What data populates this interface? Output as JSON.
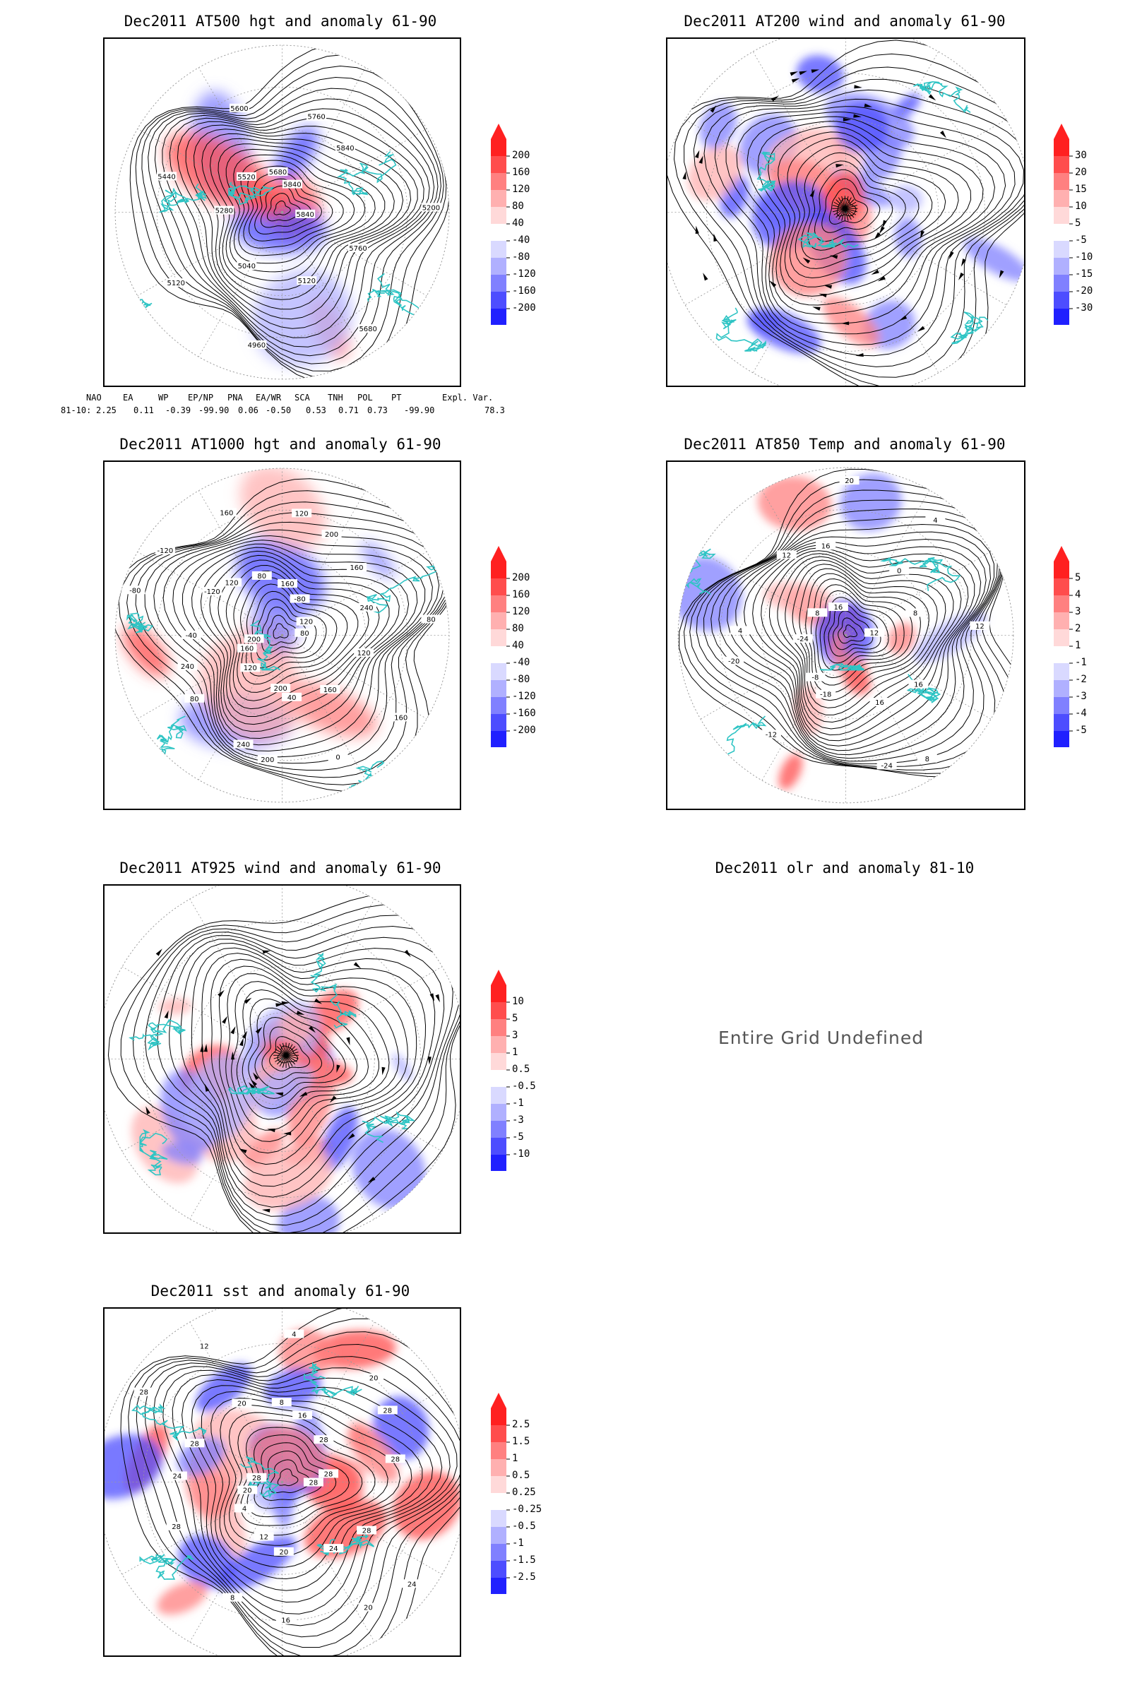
{
  "panels": [
    {
      "id": "p1",
      "title": "Dec2011 AT500 hgt and anomaly 61-90",
      "type": "contour-anomaly",
      "contour_labels": [
        "5840",
        "5760",
        "5680",
        "5120",
        "4960",
        "5040",
        "5120",
        "5280",
        "5440",
        "5520",
        "5600",
        "5680",
        "5760",
        "5840",
        "5840",
        "5200"
      ],
      "colorbar": [
        "200",
        "160",
        "120",
        "80",
        "40",
        "-40",
        "-80",
        "-120",
        "-160",
        "-200"
      ]
    },
    {
      "id": "p2",
      "title": "Dec2011 AT200 wind and anomaly 61-90",
      "type": "streamline-anomaly",
      "contour_labels": [],
      "colorbar": [
        "30",
        "20",
        "15",
        "10",
        "5",
        "-5",
        "-10",
        "-15",
        "-20",
        "-30"
      ]
    },
    {
      "id": "p3",
      "title": "Dec2011 AT1000 hgt and anomaly 61-90",
      "type": "contour-anomaly",
      "contour_labels": [
        "80",
        "120",
        "160",
        "160",
        "0",
        "40",
        "200",
        "200",
        "240",
        "120",
        "80",
        "160",
        "240",
        "200",
        "-40",
        "-80",
        "-120",
        "-120",
        "120",
        "160",
        "80",
        "120",
        "160",
        "200",
        "-80",
        "160",
        "120",
        "240",
        "80"
      ],
      "colorbar": [
        "200",
        "160",
        "120",
        "80",
        "40",
        "-40",
        "-80",
        "-120",
        "-160",
        "-200"
      ]
    },
    {
      "id": "p4",
      "title": "Dec2011 AT850 Temp and anomaly 61-90",
      "type": "contour-anomaly",
      "contour_labels": [
        "12",
        "16",
        "8",
        "16",
        "-24",
        "-18",
        "-12",
        "-8",
        "-20",
        "-24",
        "4",
        "8",
        "12",
        "16",
        "16",
        "20",
        "0",
        "4",
        "8",
        "12"
      ],
      "colorbar": [
        "5",
        "4",
        "3",
        "2",
        "1",
        "-1",
        "-2",
        "-3",
        "-4",
        "-5"
      ]
    },
    {
      "id": "p5",
      "title": "Dec2011 AT925 wind and anomaly 61-90",
      "type": "streamline-anomaly",
      "contour_labels": [],
      "colorbar": [
        "10",
        "5",
        "3",
        "1",
        "0.5",
        "-0.5",
        "-1",
        "-3",
        "-5",
        "-10"
      ]
    },
    {
      "id": "p6",
      "title": "Dec2011 olr and anomaly 81-10",
      "type": "undefined",
      "message": "Entire Grid Undefined"
    },
    {
      "id": "p7",
      "title": "Dec2011 sst and anomaly 61-90",
      "type": "contour-anomaly",
      "contour_labels": [
        "28",
        "28",
        "24",
        "24",
        "20",
        "20",
        "16",
        "12",
        "8",
        "4",
        "28",
        "20",
        "24",
        "28",
        "28",
        "28",
        "20",
        "12",
        "8",
        "4",
        "16",
        "20",
        "28",
        "28",
        "28",
        "28"
      ],
      "colorbar": [
        "2.5",
        "1.5",
        "1",
        "0.5",
        "0.25",
        "-0.25",
        "-0.5",
        "-1",
        "-1.5",
        "-2.5"
      ]
    }
  ],
  "teleconnections": {
    "headers": [
      "NAO",
      "EA",
      "WP",
      "EP/NP",
      "PNA",
      "EA/WR",
      "SCA",
      "TNH",
      "POL",
      "PT",
      "Expl. Var."
    ],
    "row_label": "81-10:",
    "values": [
      "2.25",
      "0.11",
      "-0.39",
      "-99.90",
      "0.06",
      "-0.50",
      "0.53",
      "0.71",
      "0.73",
      "-99.90",
      "78.3"
    ]
  },
  "colors": {
    "coast": "#2ec4c4",
    "contour": "#000000",
    "grid": "#9a9a9a",
    "warm": [
      "#ff2020",
      "#ff4d4d",
      "#ff8080",
      "#ffb0b0",
      "#ffd9d9"
    ],
    "cool": [
      "#2020ff",
      "#4d4dff",
      "#8080ff",
      "#b0b0ff",
      "#d9d9ff"
    ]
  }
}
